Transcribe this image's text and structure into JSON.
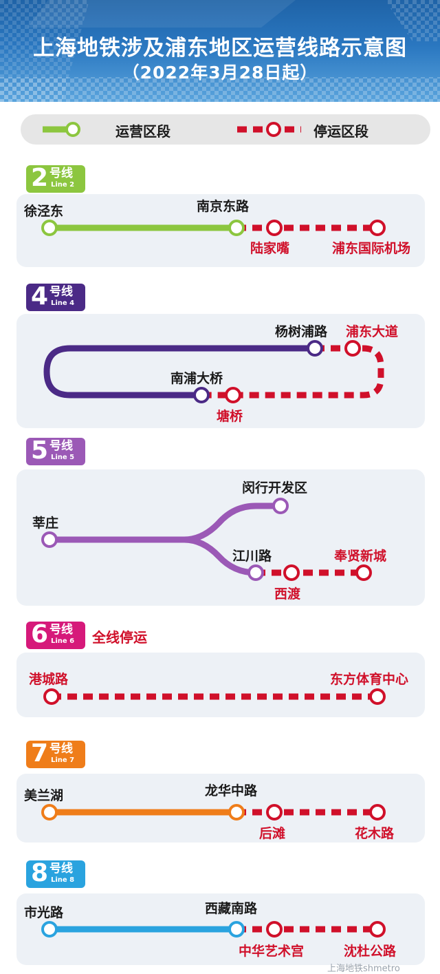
{
  "header": {
    "title": "上海地铁涉及浦东地区运营线路示意图",
    "subtitle": "（2022年3月28日起）"
  },
  "legend": {
    "running_label": "运营区段",
    "suspended_label": "停运区段",
    "running_color": "#8cc63f",
    "suspended_color": "#d0102a"
  },
  "lines": [
    {
      "key": "line2",
      "number": "2",
      "hao": "号线",
      "en": "Line 2",
      "color": "#8cc63f",
      "stations": [
        {
          "name": "徐泾东",
          "status": "running"
        },
        {
          "name": "南京东路",
          "status": "running"
        },
        {
          "name": "陆家嘴",
          "status": "suspended"
        },
        {
          "name": "浦东国际机场",
          "status": "suspended"
        }
      ]
    },
    {
      "key": "line4",
      "number": "4",
      "hao": "号线",
      "en": "Line 4",
      "color": "#4b2a86",
      "stations": [
        {
          "name": "杨树浦路",
          "status": "running"
        },
        {
          "name": "浦东大道",
          "status": "suspended"
        },
        {
          "name": "南浦大桥",
          "status": "running"
        },
        {
          "name": "塘桥",
          "status": "suspended"
        }
      ]
    },
    {
      "key": "line5",
      "number": "5",
      "hao": "号线",
      "en": "Line 5",
      "color": "#9b59b6",
      "stations": [
        {
          "name": "莘庄",
          "status": "running"
        },
        {
          "name": "闵行开发区",
          "status": "running"
        },
        {
          "name": "江川路",
          "status": "running"
        },
        {
          "name": "西渡",
          "status": "suspended"
        },
        {
          "name": "奉贤新城",
          "status": "suspended"
        }
      ]
    },
    {
      "key": "line6",
      "number": "6",
      "hao": "号线",
      "en": "Line 6",
      "color": "#d6197a",
      "note": "全线停运",
      "stations": [
        {
          "name": "港城路",
          "status": "suspended"
        },
        {
          "name": "东方体育中心",
          "status": "suspended"
        }
      ]
    },
    {
      "key": "line7",
      "number": "7",
      "hao": "号线",
      "en": "Line 7",
      "color": "#ef7d1a",
      "stations": [
        {
          "name": "美兰湖",
          "status": "running"
        },
        {
          "name": "龙华中路",
          "status": "running"
        },
        {
          "name": "后滩",
          "status": "suspended"
        },
        {
          "name": "花木路",
          "status": "suspended"
        }
      ]
    },
    {
      "key": "line8",
      "number": "8",
      "hao": "号线",
      "en": "Line 8",
      "color": "#2aa3df",
      "stations": [
        {
          "name": "市光路",
          "status": "running"
        },
        {
          "name": "西藏南路",
          "status": "running"
        },
        {
          "name": "中华艺术宫",
          "status": "suspended"
        },
        {
          "name": "沈杜公路",
          "status": "suspended"
        }
      ]
    }
  ],
  "watermark": "上海地铁shmetro",
  "colors": {
    "header_bg": "#2a77c0",
    "panel_bg": "#edf1f6",
    "suspended": "#d0102a"
  }
}
